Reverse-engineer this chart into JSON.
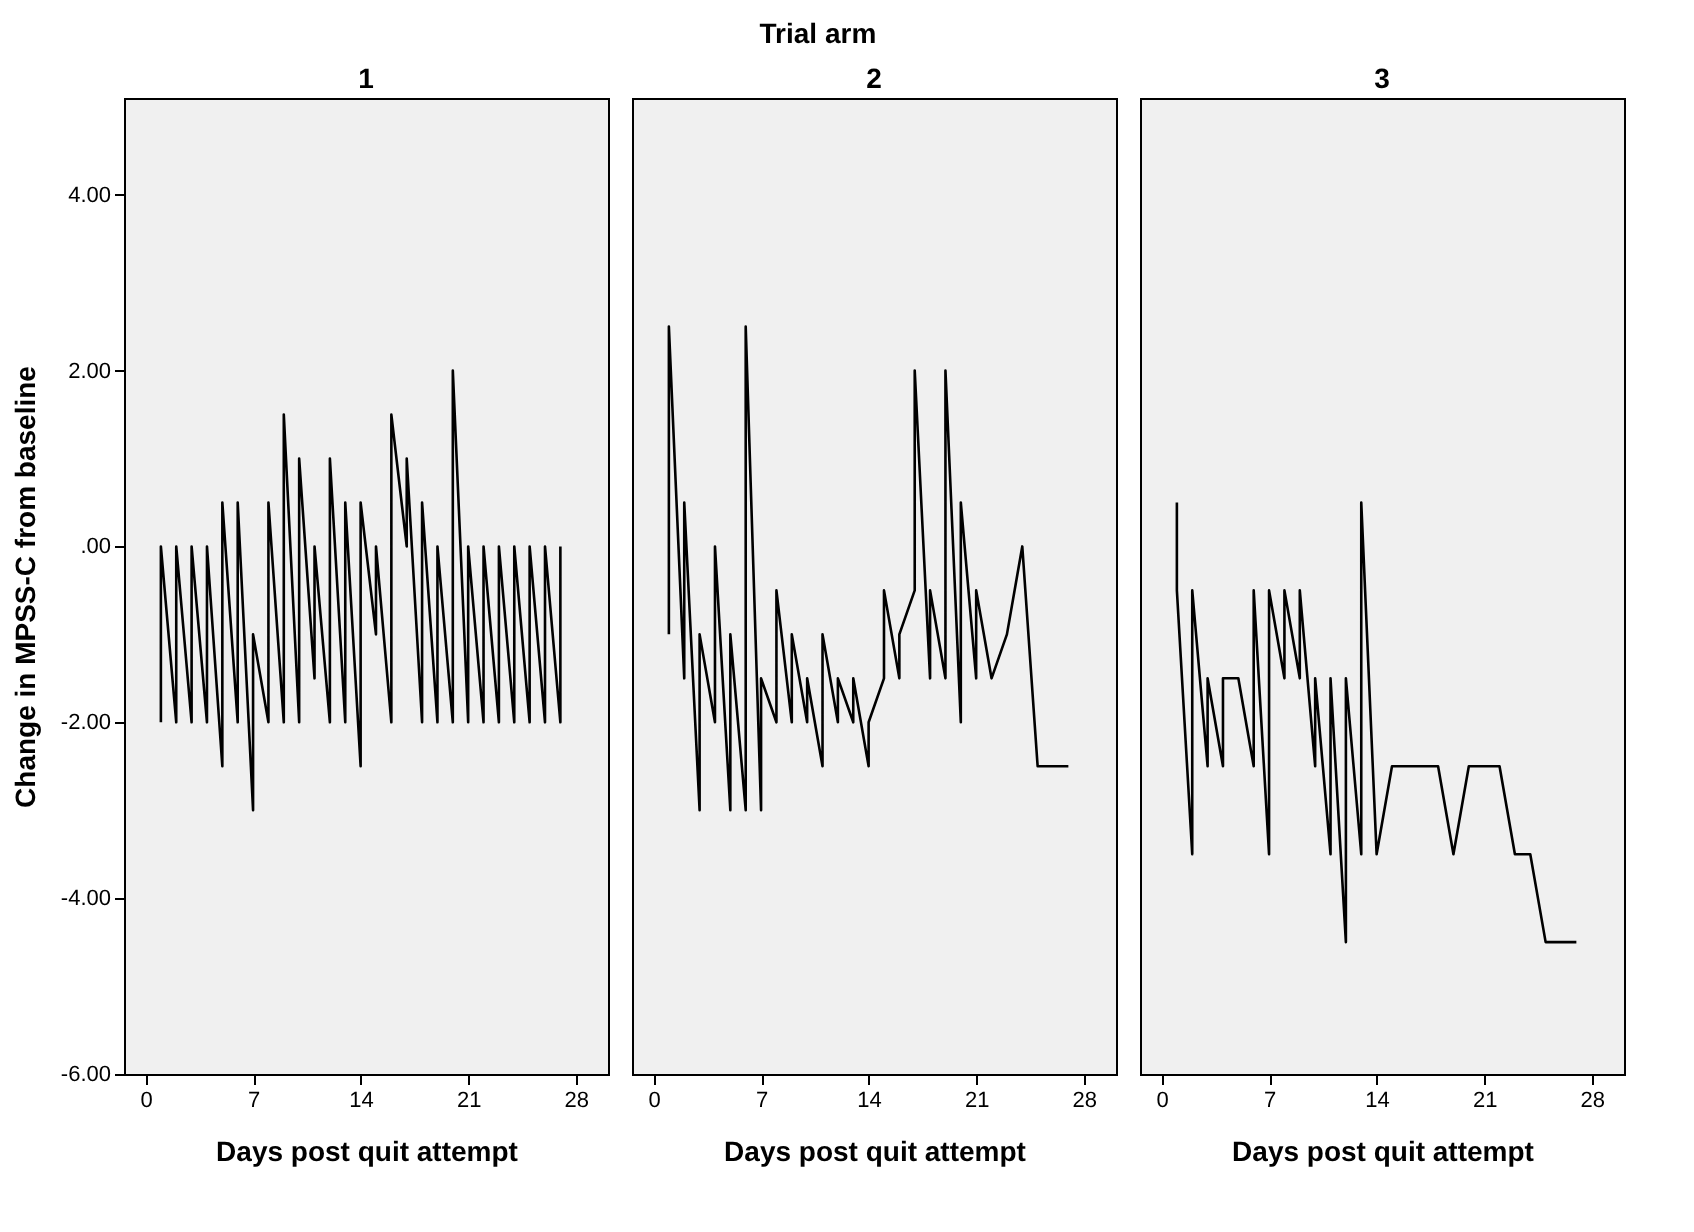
{
  "chart_data": [
    {
      "type": "line",
      "title": "1",
      "annotations": [
        "Trial arm"
      ],
      "xlabel": "Days post quit attempt",
      "ylabel": "Change in MPSS-C from baseline",
      "xlim": [
        -1.4,
        30.1
      ],
      "xticks": [
        0,
        7,
        14,
        21,
        28
      ],
      "ylim": [
        -6,
        5.1
      ],
      "yticks": [
        {
          "value": -6,
          "label": "-6.00"
        },
        {
          "value": -4,
          "label": "-4.00"
        },
        {
          "value": -2,
          "label": "-2.00"
        },
        {
          "value": 0,
          "label": ".00"
        },
        {
          "value": 2,
          "label": "2.00"
        },
        {
          "value": 4,
          "label": "4.00"
        }
      ],
      "grid": false,
      "marker": "none",
      "line_style": "solid",
      "x": [
        1,
        1,
        2,
        2,
        3,
        3,
        4,
        4,
        5,
        5,
        6,
        6,
        7,
        7,
        8,
        8,
        9,
        9,
        10,
        10,
        11,
        11,
        12,
        12,
        13,
        13,
        14,
        14,
        15,
        15,
        16,
        16,
        17,
        17,
        18,
        18,
        19,
        19,
        20,
        20,
        21,
        21,
        22,
        22,
        23,
        23,
        24,
        24,
        25,
        25,
        26,
        26,
        27,
        27
      ],
      "series": [
        {
          "color": "#000000",
          "values": [
            -2,
            0,
            -2,
            0,
            -2,
            0,
            -2,
            0,
            -2.5,
            0.5,
            -2,
            0.5,
            -3,
            -1,
            -2,
            0.5,
            -2,
            1.5,
            -2,
            1,
            -1.5,
            0,
            -2,
            1,
            -2,
            0.5,
            -2.5,
            0.5,
            -1,
            0,
            -2,
            1.5,
            0,
            1,
            -2,
            0.5,
            -2,
            0,
            -2,
            2,
            -2,
            0,
            -2,
            0,
            -2,
            0,
            -2,
            0,
            -2,
            0,
            -2,
            0,
            -2,
            0
          ]
        }
      ]
    },
    {
      "type": "line",
      "title": "2",
      "xlabel": "Days post quit attempt",
      "tick_labels": "x",
      "xlim": [
        -1.4,
        30.1
      ],
      "xticks": [
        0,
        7,
        14,
        21,
        28
      ],
      "ylim": [
        -6,
        5.1
      ],
      "grid": false,
      "marker": "none",
      "line_style": "solid",
      "x": [
        1,
        1,
        2,
        2,
        3,
        3,
        4,
        4,
        5,
        5,
        6,
        6,
        7,
        7,
        8,
        8,
        9,
        9,
        10,
        10,
        11,
        11,
        12,
        12,
        13,
        13,
        14,
        14,
        15,
        15,
        16,
        16,
        17,
        17,
        18,
        18,
        19,
        19,
        20,
        20,
        21,
        21,
        22,
        23,
        24,
        25,
        26,
        27
      ],
      "series": [
        {
          "color": "#000000",
          "values": [
            -1,
            2.5,
            -1.5,
            0.5,
            -3,
            -1,
            -2,
            0,
            -3,
            -1,
            -3,
            2.5,
            -3,
            -1.5,
            -2,
            -0.5,
            -2,
            -1,
            -2,
            -1.5,
            -2.5,
            -1,
            -2,
            -1.5,
            -2,
            -1.5,
            -2.5,
            -2,
            -1.5,
            -0.5,
            -1.5,
            -1,
            -0.5,
            2,
            -1.5,
            -0.5,
            -1.5,
            2,
            -2,
            0.5,
            -1.5,
            -0.5,
            -1.5,
            -1,
            0,
            -2.5,
            -2.5,
            -2.5
          ]
        }
      ]
    },
    {
      "type": "line",
      "title": "3",
      "xlabel": "Days post quit attempt",
      "tick_labels": "x",
      "xlim": [
        -1.4,
        30.1
      ],
      "xticks": [
        0,
        7,
        14,
        21,
        28
      ],
      "ylim": [
        -6,
        5.1
      ],
      "grid": false,
      "marker": "none",
      "line_style": "solid",
      "x": [
        1,
        1,
        2,
        2,
        3,
        3,
        4,
        4,
        5,
        6,
        6,
        7,
        7,
        8,
        8,
        9,
        9,
        10,
        10,
        11,
        11,
        12,
        12,
        13,
        13,
        14,
        15,
        16,
        17,
        18,
        19,
        20,
        21,
        22,
        23,
        24,
        25,
        26,
        27
      ],
      "series": [
        {
          "color": "#000000",
          "values": [
            0.5,
            -0.5,
            -3.5,
            -0.5,
            -2.5,
            -1.5,
            -2.5,
            -1.5,
            -1.5,
            -2.5,
            -0.5,
            -3.5,
            -0.5,
            -1.5,
            -0.5,
            -1.5,
            -0.5,
            -2.5,
            -1.5,
            -3.5,
            -1.5,
            -4.5,
            -1.5,
            -3.5,
            0.5,
            -3.5,
            -2.5,
            -2.5,
            -2.5,
            -2.5,
            -3.5,
            -2.5,
            -2.5,
            -2.5,
            -3.5,
            -3.5,
            -4.5,
            -4.5,
            -4.5
          ]
        }
      ]
    }
  ]
}
